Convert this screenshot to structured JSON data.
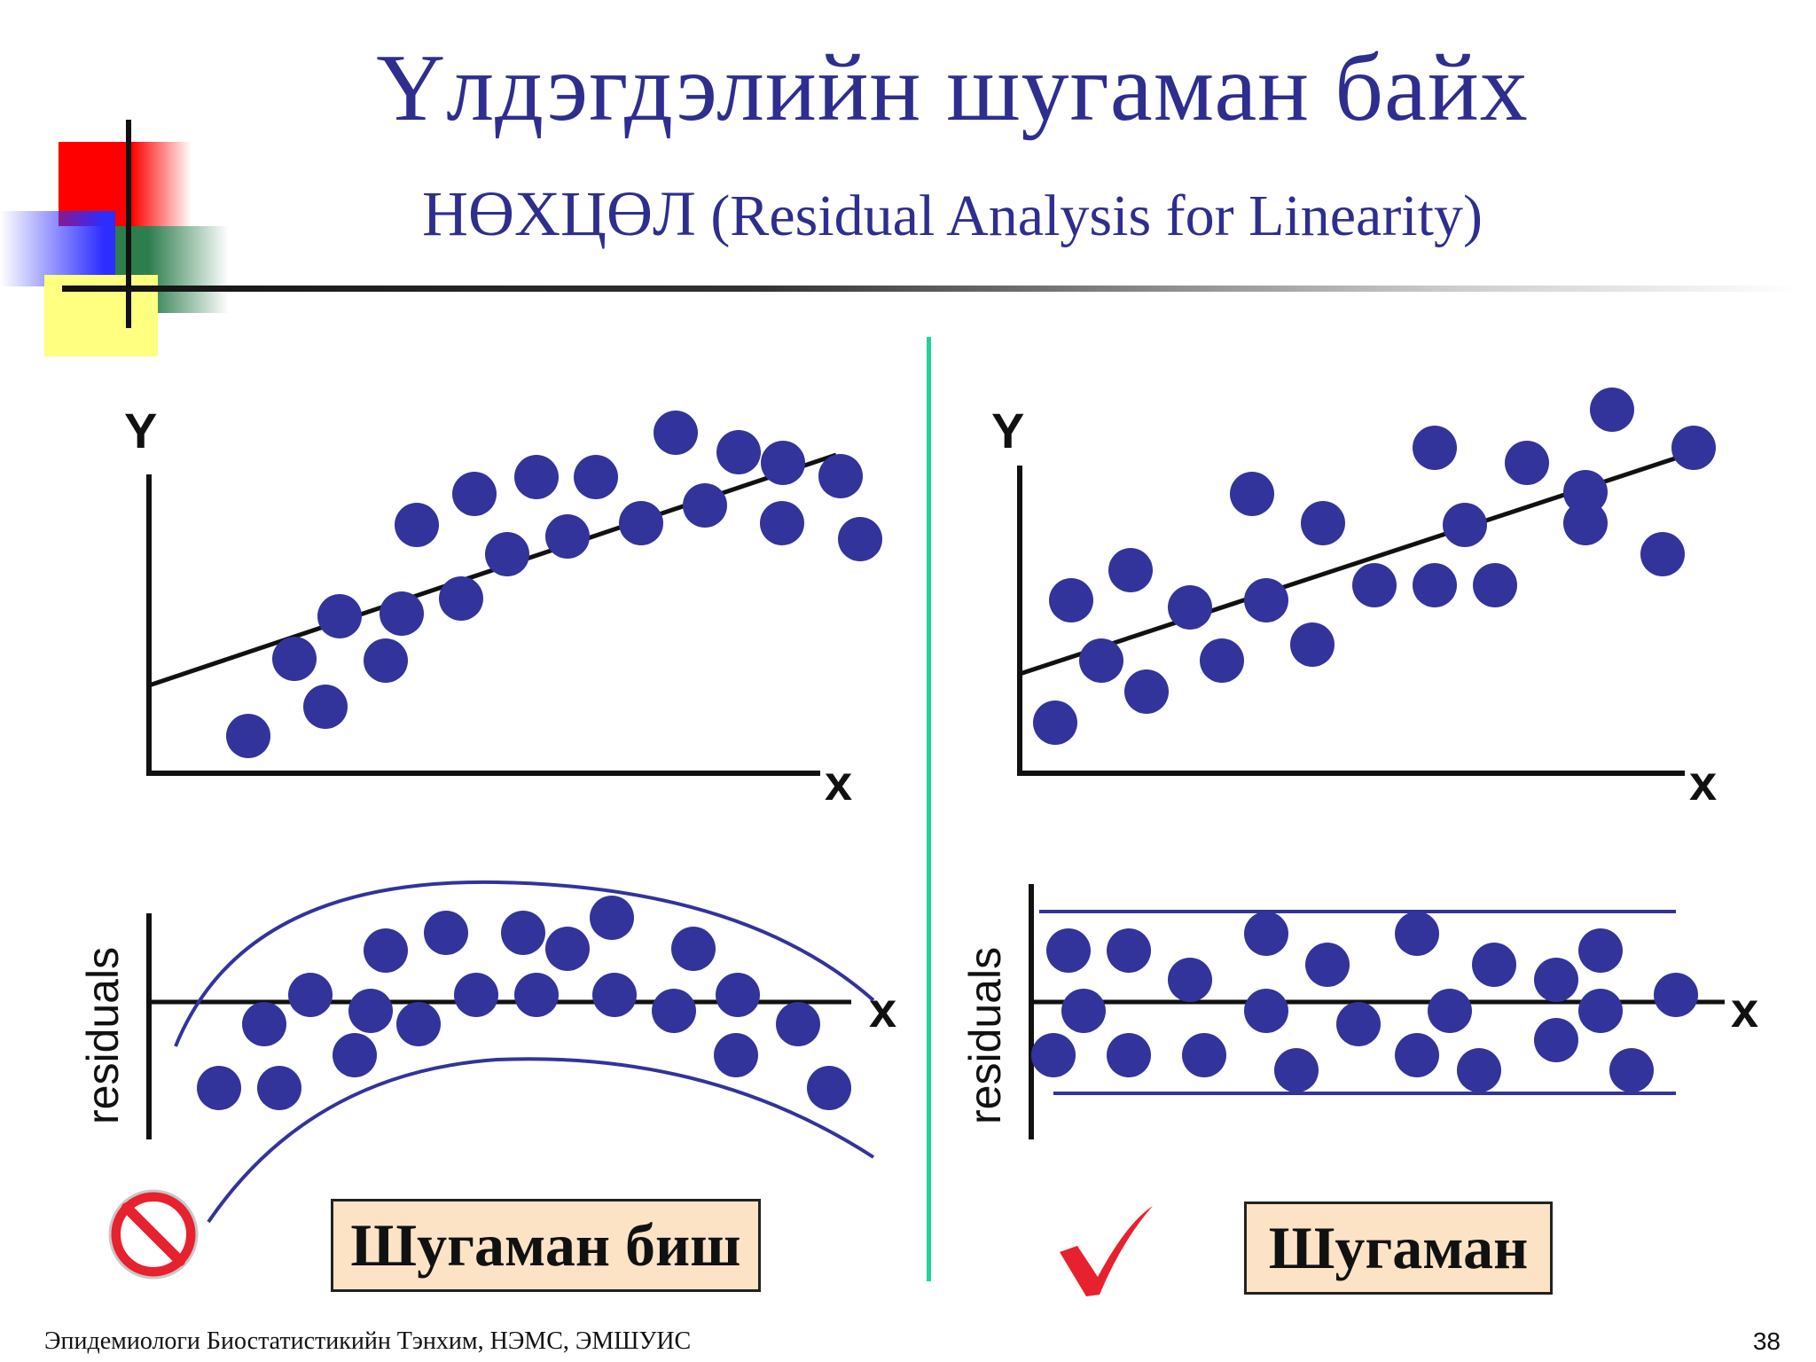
{
  "title": {
    "line1": "Үлдэгдэлийн шугаман байх",
    "line2_mn": "нөхцөл",
    "line2_en": "(Residual Analysis for Linearity)"
  },
  "axes": {
    "y_label": "Y",
    "x_label": "x",
    "residuals_label": "residuals"
  },
  "verdicts": {
    "left": "Шугаман биш",
    "right": "Шугаман"
  },
  "icons": {
    "left": "prohibition-icon",
    "right": "checkmark-icon"
  },
  "colors": {
    "title": "#2e2e8f",
    "points": "#33339c",
    "divider": "#1fd39a",
    "box_fill": "#fce3c6",
    "prohibit": "#e8212e",
    "check": "#e8212e"
  },
  "footer": "Эпидемиологи Биостатистикийн Тэнхим, НЭМС, ЭМШУИС",
  "page_number": "38"
}
